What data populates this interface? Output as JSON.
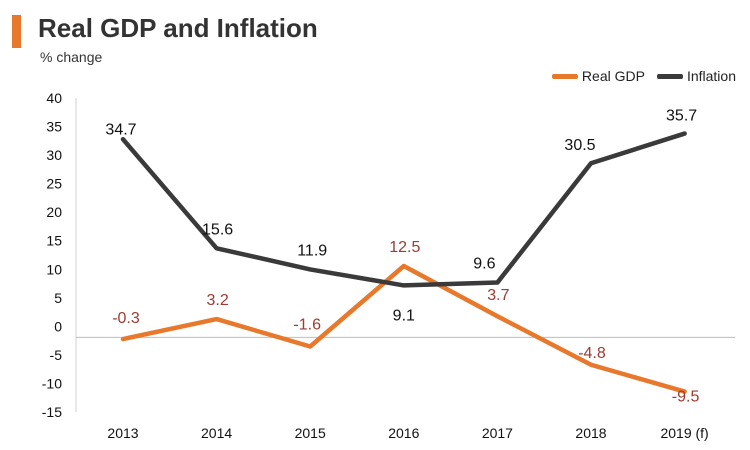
{
  "title": "Real GDP and Inflation",
  "subtitle": "% change",
  "colors": {
    "gdp": "#e8782b",
    "inflation": "#3a3a3a",
    "gdp_label": "#9b3b32",
    "inflation_label": "#111111",
    "accent": "#e8782b"
  },
  "chart_data": {
    "type": "line",
    "title": "Real GDP and Inflation",
    "ylabel": "% change",
    "xlabel": "",
    "categories": [
      "2013",
      "2014",
      "2015",
      "2016",
      "2017",
      "2018",
      "2019 (f)"
    ],
    "yticks": [
      40,
      35,
      30,
      25,
      20,
      15,
      10,
      5,
      0,
      -5,
      -10,
      -15
    ],
    "ylim": [
      -15,
      40
    ],
    "grid": false,
    "legend": "top-right",
    "series": [
      {
        "name": "Real GDP",
        "values": [
          -0.3,
          3.2,
          -1.6,
          12.5,
          3.7,
          -4.8,
          -9.5
        ],
        "labels": [
          "-0.3",
          "3.2",
          "-1.6",
          "12.5",
          "3.7",
          "-4.8",
          "-9.5"
        ]
      },
      {
        "name": "Inflation",
        "values": [
          34.7,
          15.6,
          11.9,
          9.1,
          9.6,
          30.5,
          35.7
        ],
        "labels": [
          "34.7",
          "15.6",
          "11.9",
          "9.1",
          "9.6",
          "30.5",
          "35.7"
        ]
      }
    ]
  }
}
